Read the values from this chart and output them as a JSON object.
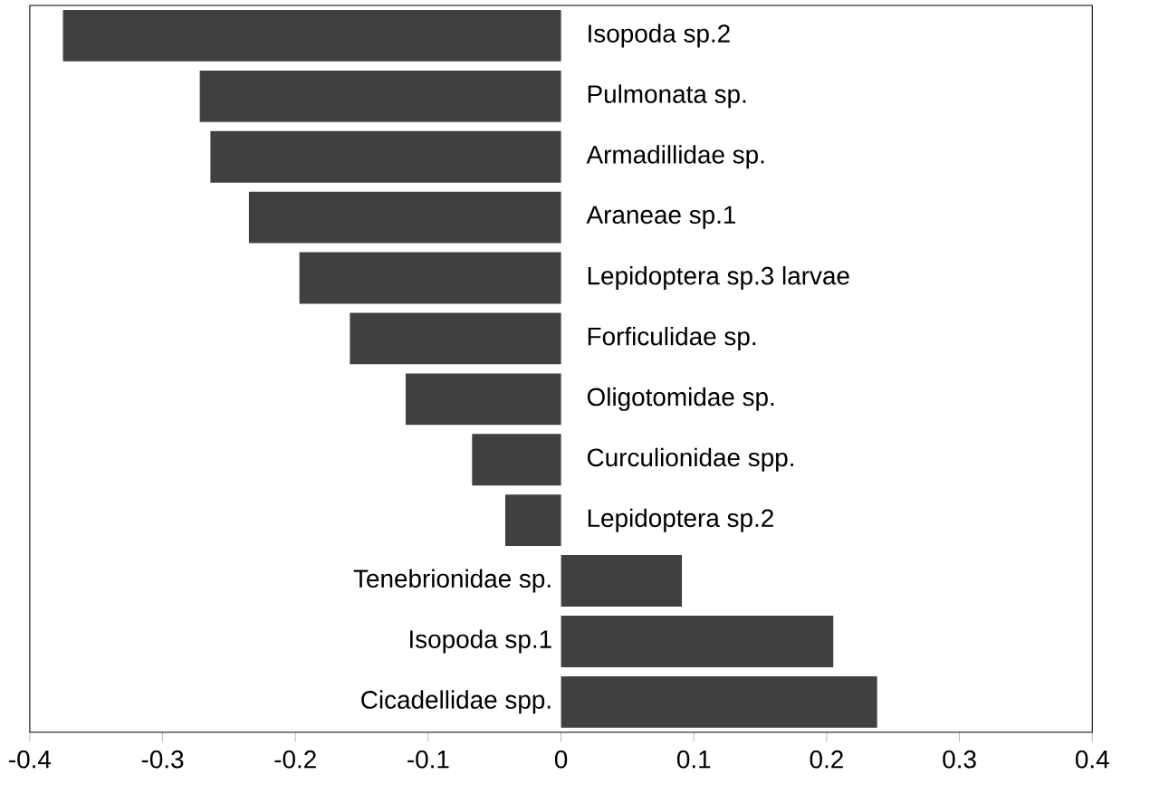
{
  "chart_data": {
    "type": "bar",
    "orientation": "horizontal",
    "categories": [
      "Isopoda sp.2",
      "Pulmonata sp.",
      "Armadillidae sp.",
      "Araneae sp.1",
      "Lepidoptera sp.3 larvae",
      "Forficulidae sp.",
      "Oligotomidae sp.",
      "Curculionidae spp.",
      "Lepidoptera sp.2",
      "Tenebrionidae sp.",
      "Isopoda sp.1",
      "Cicadellidae spp."
    ],
    "values": [
      -0.375,
      -0.272,
      -0.264,
      -0.235,
      -0.197,
      -0.159,
      -0.117,
      -0.067,
      -0.042,
      0.091,
      0.205,
      0.238
    ],
    "color": "#404040",
    "xlim": [
      -0.4,
      0.4
    ],
    "xticks": [
      -0.4,
      -0.3,
      -0.2,
      -0.1,
      0,
      0.1,
      0.2,
      0.3,
      0.4
    ],
    "grid": false
  }
}
